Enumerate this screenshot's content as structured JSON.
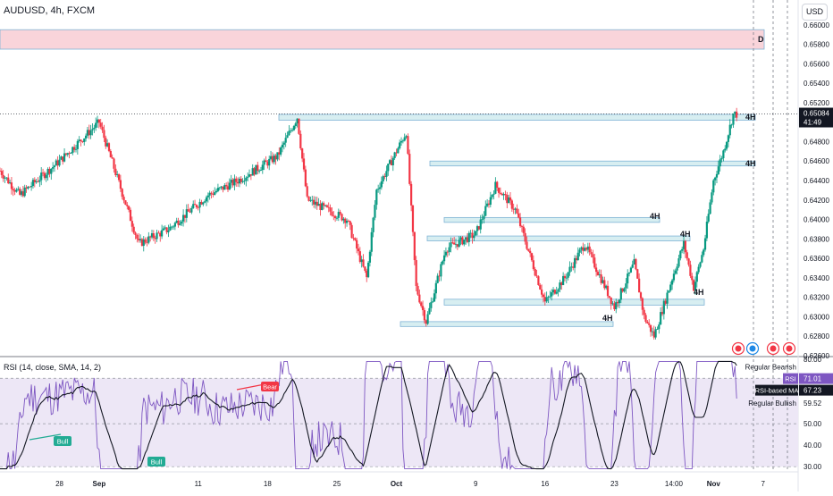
{
  "header": {
    "symbol": "AUDUSD, 4h, FXCM",
    "currency_button": "USD"
  },
  "colors": {
    "up": "#089981",
    "down": "#f23645",
    "zone_fill": "#d7eef1",
    "zone_border": "#7fb3d5",
    "supply_fill": "#f9d4da",
    "rsi_line": "#7e57c2",
    "rsi_ma": "#131722",
    "rsi_band": "#ede7f6",
    "price_badge": "#131722",
    "bear_label": "#f23645",
    "bull_label": "#22ab94"
  },
  "chart_data": [
    {
      "type": "candlestick",
      "title": "AUDUSD, 4h, FXCM",
      "y_axis": {
        "ticks": [
          "0.66000",
          "0.65800",
          "0.65600",
          "0.65400",
          "0.65200",
          "0.65000",
          "0.64800",
          "0.64600",
          "0.64400",
          "0.64200",
          "0.64000",
          "0.63800",
          "0.63600",
          "0.63400",
          "0.63200",
          "0.63000",
          "0.62800",
          "0.62600"
        ],
        "range": [
          0.626,
          0.662
        ]
      },
      "x_axis": {
        "ticks": [
          "28",
          "Sep",
          "11",
          "18",
          "25",
          "Oct",
          "9",
          "16",
          "23",
          "14:00",
          "Nov",
          "7"
        ]
      },
      "current_price": "0.65084",
      "countdown": "41:49",
      "approx_close_path": [
        {
          "t": "Aug 22",
          "price": 0.645
        },
        {
          "t": "Aug 24",
          "price": 0.6425
        },
        {
          "t": "Aug 28",
          "price": 0.646
        },
        {
          "t": "Aug 31",
          "price": 0.649
        },
        {
          "t": "Sep 1",
          "price": 0.65
        },
        {
          "t": "Sep 5",
          "price": 0.6375
        },
        {
          "t": "Sep 8",
          "price": 0.639
        },
        {
          "t": "Sep 12",
          "price": 0.6425
        },
        {
          "t": "Sep 15",
          "price": 0.644
        },
        {
          "t": "Sep 19",
          "price": 0.6465
        },
        {
          "t": "Sep 21",
          "price": 0.6505
        },
        {
          "t": "Sep 22",
          "price": 0.642
        },
        {
          "t": "Sep 26",
          "price": 0.64
        },
        {
          "t": "Sep 28",
          "price": 0.634
        },
        {
          "t": "Sep 29",
          "price": 0.643
        },
        {
          "t": "Oct 2",
          "price": 0.649
        },
        {
          "t": "Oct 3",
          "price": 0.633
        },
        {
          "t": "Oct 4",
          "price": 0.6295
        },
        {
          "t": "Oct 6",
          "price": 0.637
        },
        {
          "t": "Oct 9",
          "price": 0.6385
        },
        {
          "t": "Oct 11",
          "price": 0.6435
        },
        {
          "t": "Oct 13",
          "price": 0.641
        },
        {
          "t": "Oct 16",
          "price": 0.6315
        },
        {
          "t": "Oct 18",
          "price": 0.634
        },
        {
          "t": "Oct 20",
          "price": 0.6375
        },
        {
          "t": "Oct 23",
          "price": 0.631
        },
        {
          "t": "Oct 25",
          "price": 0.6355
        },
        {
          "t": "Oct 26",
          "price": 0.63
        },
        {
          "t": "Oct 27",
          "price": 0.628
        },
        {
          "t": "Oct 29",
          "price": 0.6345
        },
        {
          "t": "Oct 30",
          "price": 0.6375
        },
        {
          "t": "Oct 31",
          "price": 0.633
        },
        {
          "t": "Nov 1",
          "price": 0.637
        },
        {
          "t": "Nov 2",
          "price": 0.644
        },
        {
          "t": "Nov 3",
          "price": 0.647
        },
        {
          "t": "Nov 4",
          "price": 0.6508
        }
      ],
      "zones": [
        {
          "kind": "supply",
          "label": "D",
          "low": 0.6575,
          "high": 0.6595
        },
        {
          "kind": "demand",
          "label": "4H",
          "low": 0.6502,
          "high": 0.6508
        },
        {
          "kind": "demand",
          "label": "4H",
          "low": 0.6455,
          "high": 0.646
        },
        {
          "kind": "demand",
          "label": "4H",
          "low": 0.6397,
          "high": 0.6402
        },
        {
          "kind": "demand",
          "label": "4H",
          "low": 0.6378,
          "high": 0.6383
        },
        {
          "kind": "demand",
          "label": "4H",
          "low": 0.6312,
          "high": 0.6318
        },
        {
          "kind": "demand",
          "label": "4H",
          "low": 0.629,
          "high": 0.6295
        }
      ]
    },
    {
      "type": "line",
      "title": "RSI (14, close, SMA, 14, 2)",
      "y_axis": {
        "ticks": [
          "80.00",
          "40.00",
          "30.00"
        ],
        "range": [
          28,
          80
        ]
      },
      "series": [
        {
          "name": "RSI",
          "last": "71.01"
        },
        {
          "name": "RSI-based MA",
          "last": "67.23"
        }
      ],
      "levels": [
        "71.15",
        "59.52",
        "50.00"
      ],
      "labels": [
        "Regular Bearish",
        "Regular Bullish"
      ],
      "divergence_tags": [
        "Bear",
        "Bull",
        "Bull"
      ]
    }
  ]
}
